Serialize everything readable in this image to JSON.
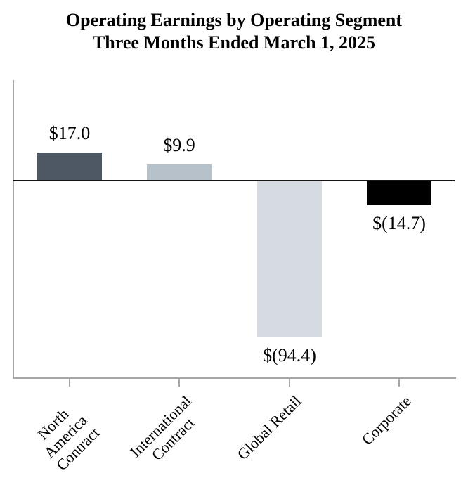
{
  "chart_data": {
    "type": "bar",
    "title": "Operating Earnings by Operating Segment",
    "subtitle": "Three Months Ended March 1, 2025",
    "categories": [
      "North America Contract",
      "International Contract",
      "Global Retail",
      "Corporate"
    ],
    "values": [
      17.0,
      9.9,
      -94.4,
      -14.7
    ],
    "value_labels": [
      "$17.0",
      "$9.9",
      "$(94.4)",
      "$(14.7)"
    ],
    "tick_labels": [
      "North America\nContract",
      "International\nContract",
      "Global Retail",
      "Corporate"
    ],
    "bar_colors": [
      "#4d5864",
      "#b7c1ca",
      "#d5dbe0",
      "#000000"
    ],
    "xlabel": "",
    "ylabel": "",
    "ylim": [
      -119,
      61
    ],
    "grid": false,
    "legend": false,
    "baseline": 0
  },
  "colors": {
    "axis": "#a6a6a6",
    "zero_line": "#161616",
    "background": "#ffffff",
    "text": "#000000"
  }
}
